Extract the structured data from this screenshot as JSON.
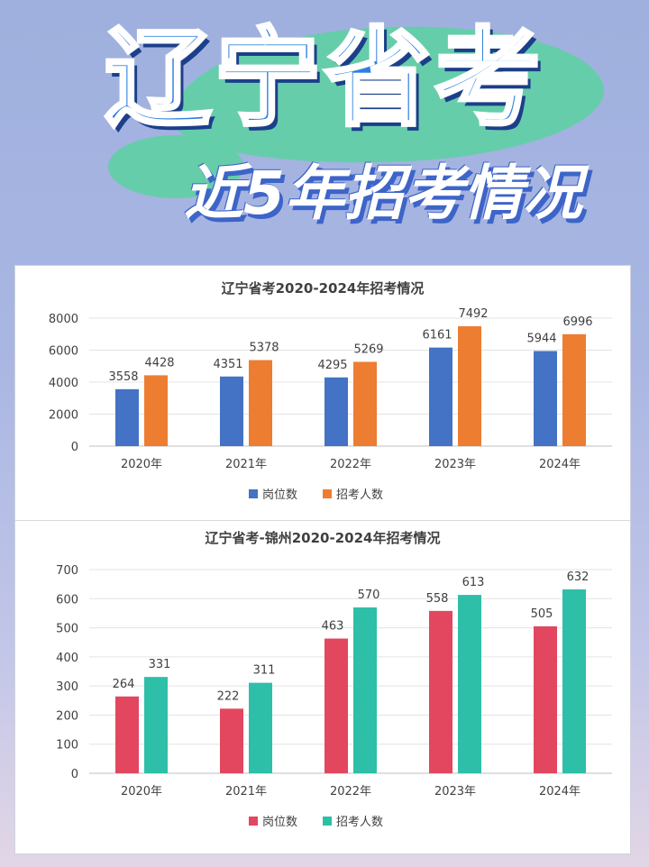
{
  "header": {
    "title": "辽宁省考",
    "subtitle": "近5年招考情况"
  },
  "chart_data": [
    {
      "type": "bar",
      "title": "辽宁省考2020-2024年招考情况",
      "categories": [
        "2020年",
        "2021年",
        "2022年",
        "2023年",
        "2024年"
      ],
      "series": [
        {
          "name": "岗位数",
          "values": [
            3558,
            4351,
            4295,
            6161,
            5944
          ],
          "color": "#4472c4"
        },
        {
          "name": "招考人数",
          "values": [
            4428,
            5378,
            5269,
            7492,
            6996
          ],
          "color": "#ed7d31"
        }
      ],
      "yticks": [
        0,
        2000,
        4000,
        6000,
        8000
      ],
      "ylim": [
        0,
        8000
      ],
      "grid": true,
      "legend": "bottom"
    },
    {
      "type": "bar",
      "title": "辽宁省考-锦州2020-2024年招考情况",
      "categories": [
        "2020年",
        "2021年",
        "2022年",
        "2023年",
        "2024年"
      ],
      "series": [
        {
          "name": "岗位数",
          "values": [
            264,
            222,
            463,
            558,
            505
          ],
          "color": "#e2475f"
        },
        {
          "name": "招考人数",
          "values": [
            331,
            311,
            570,
            613,
            632
          ],
          "color": "#2ebfa8"
        }
      ],
      "yticks": [
        0,
        100,
        200,
        300,
        400,
        500,
        600,
        700
      ],
      "ylim": [
        0,
        700
      ],
      "grid": true,
      "legend": "bottom"
    }
  ]
}
